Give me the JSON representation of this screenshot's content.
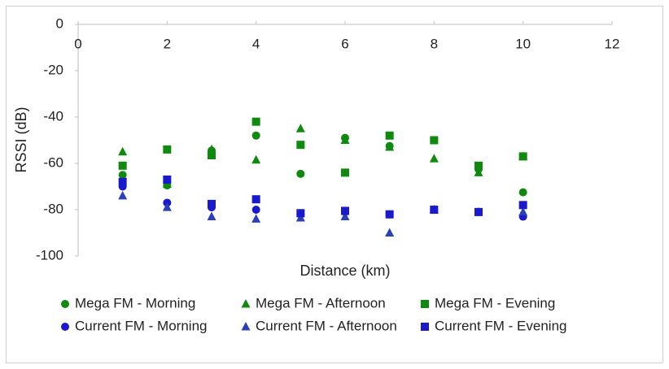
{
  "chart_data": {
    "type": "scatter",
    "x_label": "Distance (km)",
    "y_label": "RSSI (dB)",
    "x": [
      1,
      2,
      3,
      4,
      5,
      6,
      7,
      8,
      9,
      10
    ],
    "xlim": [
      0,
      12
    ],
    "xticks": [
      0,
      2,
      4,
      6,
      8,
      10,
      12
    ],
    "ylim": [
      -100,
      0
    ],
    "yticks": [
      0,
      -20,
      -40,
      -60,
      -80,
      -100
    ],
    "grid": false,
    "legend": "bottom",
    "series": [
      {
        "name": "Mega FM - Morning",
        "color": "#0f8a0f",
        "marker": "circle",
        "values": [
          -65,
          -69.5,
          -54.5,
          -48,
          -64.5,
          -49,
          -52.5,
          -50,
          -62.5,
          -72.5
        ]
      },
      {
        "name": "Mega FM - Afternoon",
        "color": "#0f8a0f",
        "marker": "triangle",
        "values": [
          -55,
          -69,
          -54,
          -58.5,
          -45,
          -50,
          -53,
          -58,
          -64,
          -57
        ]
      },
      {
        "name": "Mega FM - Evening",
        "color": "#0f8a0f",
        "marker": "square",
        "values": [
          -61,
          -54,
          -56.5,
          -42,
          -52,
          -64,
          -48,
          -50,
          -61,
          -57
        ]
      },
      {
        "name": "Current FM - Morning",
        "color": "#1a1acc",
        "marker": "circle",
        "values": [
          -70,
          -77,
          -79,
          -80,
          -82,
          -81,
          -82,
          -80,
          -81,
          -83
        ]
      },
      {
        "name": "Current FM - Afternoon",
        "color": "#2a3fb8",
        "marker": "triangle",
        "values": [
          -74,
          -79,
          -83,
          -84,
          -83.5,
          -83,
          -90,
          -80,
          -81,
          -81
        ]
      },
      {
        "name": "Current FM - Evening",
        "color": "#1a1acc",
        "marker": "square",
        "values": [
          -68,
          -67,
          -77.5,
          -75.5,
          -81.5,
          -80.5,
          -82,
          -80,
          -81,
          -78
        ]
      }
    ]
  }
}
